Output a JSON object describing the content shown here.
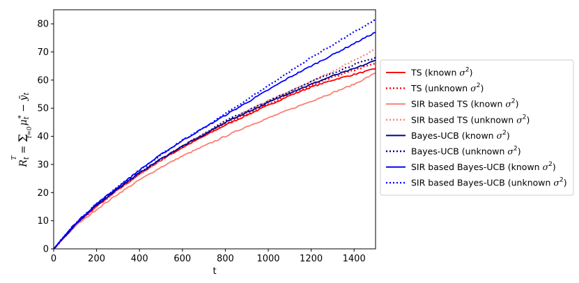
{
  "chart_data": {
    "type": "line",
    "xlabel": "t",
    "ylabel": "R_t = Σ_{t=0}^{T} μ*_t − ȳ_t",
    "ylabel_parts": {
      "R": "R",
      "t": "t",
      "T": "T",
      "t0": "t=0",
      "mu": "μ",
      "star": "*",
      "ybar": "ȳ"
    },
    "xlim": [
      0,
      1500
    ],
    "ylim": [
      0,
      85
    ],
    "xticks": [
      0,
      200,
      400,
      600,
      800,
      1000,
      1200,
      1400
    ],
    "yticks": [
      0,
      10,
      20,
      30,
      40,
      50,
      60,
      70,
      80
    ],
    "grid": false,
    "legend_placement": "outside-right",
    "series": [
      {
        "name": "TS (known σ²)",
        "label_main": "TS (known ",
        "color": "#ff0000",
        "dash": "solid",
        "x": [
          0,
          100,
          200,
          300,
          400,
          500,
          600,
          700,
          800,
          900,
          1000,
          1100,
          1200,
          1300,
          1400,
          1500
        ],
        "y": [
          0,
          8.5,
          15,
          21,
          26.5,
          31.5,
          36,
          40,
          44,
          47.5,
          51,
          54.5,
          57.5,
          60,
          62,
          64
        ]
      },
      {
        "name": "TS (unknown σ²)",
        "label_main": "TS (unknown ",
        "color": "#ff0000",
        "dash": "dotted",
        "x": [
          0,
          100,
          200,
          300,
          400,
          500,
          600,
          700,
          800,
          900,
          1000,
          1100,
          1200,
          1300,
          1400,
          1500
        ],
        "y": [
          0,
          8.5,
          15,
          21,
          26.5,
          31.5,
          36.5,
          40.5,
          44.5,
          48,
          51.5,
          55,
          58,
          61,
          63.5,
          66
        ]
      },
      {
        "name": "SIR based TS (known σ²)",
        "label_main": "SIR based TS (known ",
        "color": "#fa8072",
        "dash": "solid",
        "x": [
          0,
          100,
          200,
          300,
          400,
          500,
          600,
          700,
          800,
          900,
          1000,
          1100,
          1200,
          1300,
          1400,
          1500
        ],
        "y": [
          0,
          8,
          14,
          19.5,
          24.5,
          29,
          33,
          36.5,
          40,
          43.5,
          46.5,
          49.5,
          52.5,
          55.5,
          58.5,
          62.5
        ]
      },
      {
        "name": "SIR based TS (unknown σ²)",
        "label_main": "SIR based TS (unknown ",
        "color": "#fa8072",
        "dash": "dotted",
        "x": [
          0,
          100,
          200,
          300,
          400,
          500,
          600,
          700,
          800,
          900,
          1000,
          1100,
          1200,
          1300,
          1400,
          1500
        ],
        "y": [
          0,
          8.5,
          15,
          21,
          26.5,
          31.5,
          36.5,
          41,
          45,
          49,
          52.5,
          56,
          59.5,
          63,
          67,
          71
        ]
      },
      {
        "name": "Bayes-UCB (known σ²)",
        "label_main": "Bayes-UCB (known ",
        "color": "#00008b",
        "dash": "solid",
        "x": [
          0,
          100,
          200,
          300,
          400,
          500,
          600,
          700,
          800,
          900,
          1000,
          1100,
          1200,
          1300,
          1400,
          1500
        ],
        "y": [
          0,
          8.5,
          15.5,
          21.5,
          27,
          32,
          36.5,
          40.5,
          45,
          48.5,
          52,
          55.5,
          58.5,
          61.5,
          64,
          67
        ]
      },
      {
        "name": "Bayes-UCB (unknown σ²)",
        "label_main": "Bayes-UCB (unknown ",
        "color": "#00008b",
        "dash": "dotted",
        "x": [
          0,
          100,
          200,
          300,
          400,
          500,
          600,
          700,
          800,
          900,
          1000,
          1100,
          1200,
          1300,
          1400,
          1500
        ],
        "y": [
          0,
          8.5,
          15.5,
          21.5,
          27,
          32,
          36.5,
          41,
          45.5,
          49,
          52.5,
          56,
          59.5,
          62.5,
          65.5,
          68
        ]
      },
      {
        "name": "SIR based Bayes-UCB (known σ²)",
        "label_main": "SIR based Bayes-UCB (known ",
        "color": "#0000ff",
        "dash": "solid",
        "x": [
          0,
          100,
          200,
          300,
          400,
          500,
          600,
          700,
          800,
          900,
          1000,
          1100,
          1200,
          1300,
          1400,
          1500
        ],
        "y": [
          0,
          9,
          16,
          22,
          28,
          33.5,
          38.5,
          43,
          47.5,
          52,
          56.5,
          61,
          65,
          69,
          73,
          77
        ]
      },
      {
        "name": "SIR based Bayes-UCB (unknown σ²)",
        "label_main": "SIR based Bayes-UCB (unknown ",
        "color": "#0000ff",
        "dash": "dotted",
        "x": [
          0,
          100,
          200,
          300,
          400,
          500,
          600,
          700,
          800,
          900,
          1000,
          1100,
          1200,
          1300,
          1400,
          1500
        ],
        "y": [
          0,
          9,
          16,
          22,
          28,
          33.5,
          38.5,
          43,
          48,
          53,
          58,
          63,
          68,
          72.5,
          77,
          81.5
        ]
      }
    ],
    "legend_sigma": "σ",
    "legend_sup": "2",
    "legend_close": ")"
  }
}
